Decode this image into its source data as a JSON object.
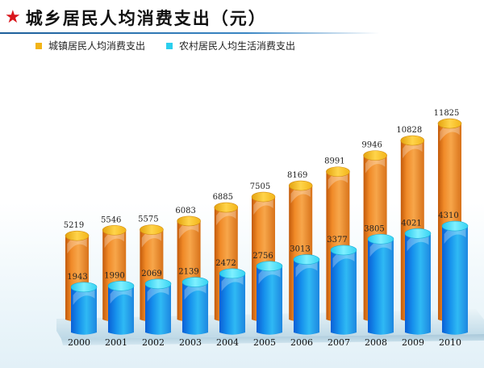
{
  "title": "城乡居民人均消费支出（元）",
  "star_icon": "★",
  "colors": {
    "urban": "#f0a020",
    "rural": "#1cc6f0",
    "title_star": "#d9161c",
    "rule": "#2a72b0"
  },
  "legend": [
    {
      "label": "城镇居民人均消费支出",
      "color": "#f2b418"
    },
    {
      "label": "农村居民人均生活消费支出",
      "color": "#2bcfee"
    }
  ],
  "chart_data": {
    "type": "bar",
    "title": "城乡居民人均消费支出（元）",
    "xlabel": "",
    "ylabel": "",
    "categories": [
      "2000",
      "2001",
      "2002",
      "2003",
      "2004",
      "2005",
      "2006",
      "2007",
      "2008",
      "2009",
      "2010"
    ],
    "series": [
      {
        "name": "城镇居民人均消费支出",
        "values": [
          5219,
          5546,
          5575,
          6083,
          6885,
          7505,
          8169,
          8991,
          9946,
          10828,
          11825
        ]
      },
      {
        "name": "农村居民人均生活消费支出",
        "values": [
          1943,
          1990,
          2069,
          2139,
          2472,
          2756,
          3013,
          3377,
          3805,
          4021,
          4310
        ]
      }
    ],
    "grid": false,
    "legend_position": "top-left",
    "style": "3d-cylinder"
  }
}
